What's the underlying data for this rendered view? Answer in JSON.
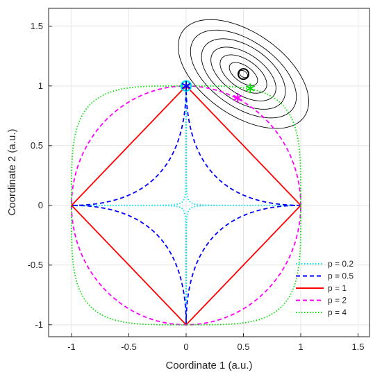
{
  "chart_data": {
    "type": "line",
    "xlabel": "Coordinate 1 (a.u.)",
    "ylabel": "Coordinate 2 (a.u.)",
    "xlim": [
      -1.2,
      1.6
    ],
    "ylim": [
      -1.1,
      1.65
    ],
    "x_ticks": [
      -1,
      -0.5,
      0,
      0.5,
      1,
      1.5
    ],
    "y_ticks": [
      -1,
      -0.5,
      0,
      0.5,
      1,
      1.5
    ],
    "x_tick_labels": [
      "-1",
      "-0.5",
      "0",
      "0.5",
      "1",
      "1.5"
    ],
    "y_tick_labels": [
      "-1",
      "-0.5",
      "0",
      "0.5",
      "1",
      "1.5"
    ],
    "grid": true,
    "legend_position": "bottom-right",
    "series": [
      {
        "name": "p = 0.2",
        "p": 0.2,
        "color": "#00e5ee",
        "style": "dotted",
        "solution": [
          0,
          1
        ]
      },
      {
        "name": "p = 0.5",
        "p": 0.5,
        "color": "#0000ff",
        "style": "dashed",
        "solution": [
          0,
          1
        ]
      },
      {
        "name": "p = 1",
        "p": 1,
        "color": "#ff0000",
        "style": "solid",
        "solution": [
          0,
          1
        ]
      },
      {
        "name": "p = 2",
        "p": 2,
        "color": "#ff00ff",
        "style": "dashed",
        "solution": [
          0.45,
          0.9
        ]
      },
      {
        "name": "p = 4",
        "p": 4,
        "color": "#00e000",
        "style": "dotted",
        "solution": [
          0.56,
          0.98
        ]
      }
    ],
    "unconstrained_minimum": [
      0.5,
      1.1
    ],
    "contours": {
      "center": [
        0.5,
        1.1
      ],
      "angle_deg": -33,
      "semi_axes": [
        [
          0.04,
          0.025
        ],
        [
          0.14,
          0.07
        ],
        [
          0.23,
          0.12
        ],
        [
          0.32,
          0.17
        ],
        [
          0.41,
          0.23
        ],
        [
          0.52,
          0.28
        ],
        [
          0.64,
          0.35
        ]
      ],
      "color": "#000000"
    }
  }
}
